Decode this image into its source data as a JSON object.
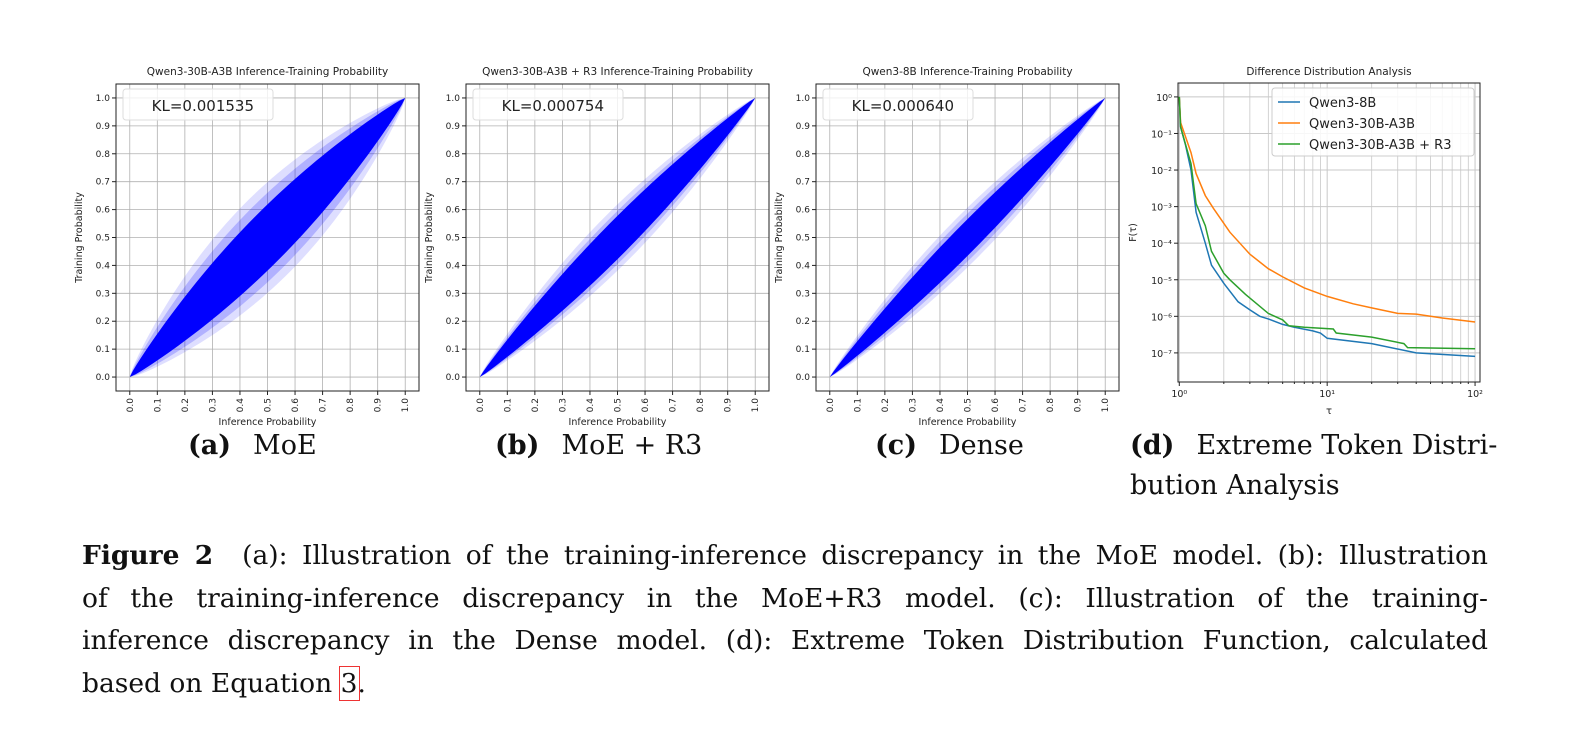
{
  "chart_data": [
    {
      "type": "scatter",
      "title": "Qwen3-30B-A3B Inference-Training Probability",
      "xlabel": "Inference Probability",
      "ylabel": "Training Probability",
      "annotation": "KL=0.001535",
      "xlim": [
        -0.05,
        1.05
      ],
      "ylim": [
        -0.05,
        1.05
      ],
      "xticks": [
        "0.0",
        "0.1",
        "0.2",
        "0.3",
        "0.4",
        "0.5",
        "0.6",
        "0.7",
        "0.8",
        "0.9",
        "1.0"
      ],
      "yticks": [
        "0.0",
        "0.1",
        "0.2",
        "0.3",
        "0.4",
        "0.5",
        "0.6",
        "0.7",
        "0.8",
        "0.9",
        "1.0"
      ],
      "grid": true,
      "color": "#0000ff",
      "core_spread": 0.1,
      "outer_spread": 0.17
    },
    {
      "type": "scatter",
      "title": "Qwen3-30B-A3B + R3 Inference-Training Probability",
      "xlabel": "Inference Probability",
      "ylabel": "Training Probability",
      "annotation": "KL=0.000754",
      "xlim": [
        -0.05,
        1.05
      ],
      "ylim": [
        -0.05,
        1.05
      ],
      "xticks": [
        "0.0",
        "0.1",
        "0.2",
        "0.3",
        "0.4",
        "0.5",
        "0.6",
        "0.7",
        "0.8",
        "0.9",
        "1.0"
      ],
      "yticks": [
        "0.0",
        "0.1",
        "0.2",
        "0.3",
        "0.4",
        "0.5",
        "0.6",
        "0.7",
        "0.8",
        "0.9",
        "1.0"
      ],
      "grid": true,
      "color": "#0000ff",
      "core_spread": 0.065,
      "outer_spread": 0.1
    },
    {
      "type": "scatter",
      "title": "Qwen3-8B Inference-Training Probability",
      "xlabel": "Inference Probability",
      "ylabel": "Training Probability",
      "annotation": "KL=0.000640",
      "xlim": [
        -0.05,
        1.05
      ],
      "ylim": [
        -0.05,
        1.05
      ],
      "xticks": [
        "0.0",
        "0.1",
        "0.2",
        "0.3",
        "0.4",
        "0.5",
        "0.6",
        "0.7",
        "0.8",
        "0.9",
        "1.0"
      ],
      "yticks": [
        "0.0",
        "0.1",
        "0.2",
        "0.3",
        "0.4",
        "0.5",
        "0.6",
        "0.7",
        "0.8",
        "0.9",
        "1.0"
      ],
      "grid": true,
      "color": "#0000ff",
      "core_spread": 0.055,
      "outer_spread": 0.09
    },
    {
      "type": "line",
      "title": "Difference Distribution Analysis",
      "xlabel": "τ",
      "ylabel": "F(τ)",
      "xscale": "log",
      "yscale": "log",
      "xlim": [
        0.98,
        108
      ],
      "ylim": [
        1.6e-08,
        2.4
      ],
      "xticks": [
        "10⁰",
        "10¹",
        "10²"
      ],
      "yticks": [
        "10⁰",
        "10⁻¹",
        "10⁻²",
        "10⁻³",
        "10⁻⁴",
        "10⁻⁵",
        "10⁻⁶",
        "10⁻⁷"
      ],
      "grid": true,
      "legend": "top-right",
      "series": [
        {
          "name": "Qwen3-8B",
          "color": "#1f77b4",
          "x": [
            1,
            1.02,
            1.1,
            1.2,
            1.3,
            1.5,
            1.65,
            2,
            2.5,
            3,
            3.5,
            4,
            5,
            6,
            8,
            9,
            10,
            20,
            40,
            100
          ],
          "y": [
            1,
            0.15,
            0.05,
            0.01,
            0.0007,
            0.0001,
            2.5e-05,
            8e-06,
            2.5e-06,
            1.5e-06,
            1e-06,
            8.5e-07,
            6e-07,
            5e-07,
            4e-07,
            3.5e-07,
            2.5e-07,
            1.8e-07,
            1e-07,
            8e-08
          ]
        },
        {
          "name": "Qwen3-30B-A3B",
          "color": "#ff7f0e",
          "x": [
            1,
            1.02,
            1.2,
            1.3,
            1.5,
            1.7,
            2.2,
            3,
            4,
            5,
            7,
            10,
            15,
            20,
            30,
            40,
            60,
            100
          ],
          "y": [
            1,
            0.2,
            0.03,
            0.008,
            0.002,
            0.0009,
            0.0002,
            5e-05,
            2e-05,
            1.2e-05,
            6e-06,
            3.5e-06,
            2.2e-06,
            1.7e-06,
            1.2e-06,
            1.15e-06,
            9e-07,
            7e-07
          ]
        },
        {
          "name": "Qwen3-30B-A3B + R3",
          "color": "#2ca02c",
          "x": [
            1,
            1.02,
            1.2,
            1.3,
            1.5,
            1.65,
            2,
            2.2,
            2.8,
            4,
            5,
            5.5,
            7,
            11,
            11.5,
            20,
            33,
            35,
            100
          ],
          "y": [
            1,
            0.15,
            0.015,
            0.0012,
            0.0003,
            6e-05,
            1.5e-05,
            1e-05,
            4e-06,
            1.2e-06,
            8e-07,
            5.5e-07,
            5e-07,
            4.5e-07,
            3.5e-07,
            2.7e-07,
            1.8e-07,
            1.4e-07,
            1.3e-07
          ]
        }
      ]
    }
  ],
  "subcaptions": [
    {
      "label": "(a)",
      "text": "MoE"
    },
    {
      "label": "(b)",
      "text": "MoE + R3"
    },
    {
      "label": "(c)",
      "text": "Dense"
    },
    {
      "label": "(d)",
      "text": "Extreme Token Distri-",
      "text2": "bution Analysis"
    }
  ],
  "caption": {
    "figure_label": "Figure 2",
    "line1": "(a): Illustration of the training-inference discrepancy in the MoE model. (b): Illustration",
    "line2": "of the training-inference discrepancy in the MoE+R3 model. (c): Illustration of the training-",
    "line3": "inference discrepancy in the Dense model. (d): Extreme Token Distribution Function, calculated",
    "line4_before": "based on Equation ",
    "line4_ref": "3",
    "line4_after": "."
  }
}
